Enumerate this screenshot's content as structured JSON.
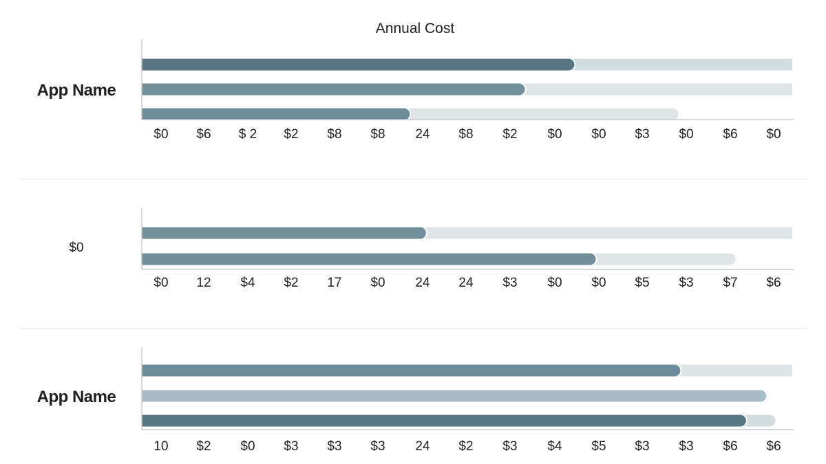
{
  "chart_data": {
    "type": "bar",
    "title": "Annual Cost",
    "axis_max": 100,
    "grid": false,
    "colors": {
      "track": "#dfe5e7",
      "track_alt": "#d3dde0",
      "series_dark": "#587682",
      "series_mid": "#71909a",
      "series_steel": "#6c8c99",
      "series_light": "#a8bdc6",
      "axis": "#c4cbcf",
      "divider": "#e6e6e6"
    },
    "panels": [
      {
        "label": "App Name",
        "bars": [
          {
            "value": 66.5,
            "track": 100,
            "color": "series_dark"
          },
          {
            "value": 58.9,
            "track": 100,
            "color": "series_mid"
          },
          {
            "value": 41.2,
            "track": 82.5,
            "color": "series_steel"
          }
        ],
        "ticks": [
          "$0",
          "$6",
          "$ 2",
          "$2",
          "$8",
          "$8",
          "24",
          "$8",
          "$2",
          "$0",
          "$0",
          "$3",
          "$0",
          "$6",
          "$0"
        ]
      },
      {
        "label": "$0",
        "bars": [
          {
            "value": 43.7,
            "track": 100,
            "color": "series_mid"
          },
          {
            "value": 69.8,
            "track": 91.3,
            "color": "series_mid"
          }
        ],
        "ticks": [
          "$0",
          "12",
          "$4",
          "$2",
          "17",
          "$0",
          "24",
          "24",
          "$3",
          "$0",
          "$0",
          "$5",
          "$3",
          "$7",
          "$6"
        ]
      },
      {
        "label": "App Name",
        "bars": [
          {
            "value": 82.8,
            "track": 100,
            "color": "series_steel"
          },
          {
            "value": 96.0,
            "track": 96.0,
            "color": "series_light"
          },
          {
            "value": 92.9,
            "track": 97.4,
            "color": "series_dark"
          }
        ],
        "ticks": [
          "10",
          "$2",
          "$0",
          "$3",
          "$3",
          "$3",
          "24",
          "$2",
          "$3",
          "$4",
          "$5",
          "$3",
          "$3",
          "$6",
          "$6"
        ]
      }
    ]
  }
}
